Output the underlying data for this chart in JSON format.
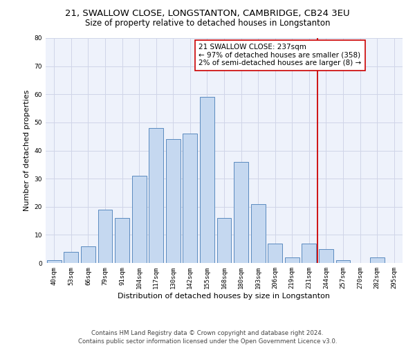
{
  "title1": "21, SWALLOW CLOSE, LONGSTANTON, CAMBRIDGE, CB24 3EU",
  "title2": "Size of property relative to detached houses in Longstanton",
  "xlabel": "Distribution of detached houses by size in Longstanton",
  "ylabel": "Number of detached properties",
  "bar_labels": [
    "40sqm",
    "53sqm",
    "66sqm",
    "79sqm",
    "91sqm",
    "104sqm",
    "117sqm",
    "130sqm",
    "142sqm",
    "155sqm",
    "168sqm",
    "180sqm",
    "193sqm",
    "206sqm",
    "219sqm",
    "231sqm",
    "244sqm",
    "257sqm",
    "270sqm",
    "282sqm",
    "295sqm"
  ],
  "bar_values": [
    1,
    4,
    6,
    19,
    16,
    31,
    48,
    44,
    46,
    59,
    16,
    36,
    21,
    7,
    2,
    7,
    5,
    1,
    0,
    2,
    0
  ],
  "bar_color": "#c5d8f0",
  "bar_edge_color": "#5a8abf",
  "vline_color": "#cc0000",
  "annotation_text": "21 SWALLOW CLOSE: 237sqm\n← 97% of detached houses are smaller (358)\n2% of semi-detached houses are larger (8) →",
  "annotation_box_color": "#ffffff",
  "annotation_box_edge": "#cc0000",
  "ylim": [
    0,
    80
  ],
  "yticks": [
    0,
    10,
    20,
    30,
    40,
    50,
    60,
    70,
    80
  ],
  "grid_color": "#d0d5e8",
  "bg_color": "#eef2fb",
  "footer": "Contains HM Land Registry data © Crown copyright and database right 2024.\nContains public sector information licensed under the Open Government Licence v3.0.",
  "title_fontsize": 9.5,
  "subtitle_fontsize": 8.5,
  "axis_label_fontsize": 8,
  "tick_fontsize": 6.5,
  "annotation_fontsize": 7.5,
  "footer_fontsize": 6.2,
  "vline_pos": 15.5
}
